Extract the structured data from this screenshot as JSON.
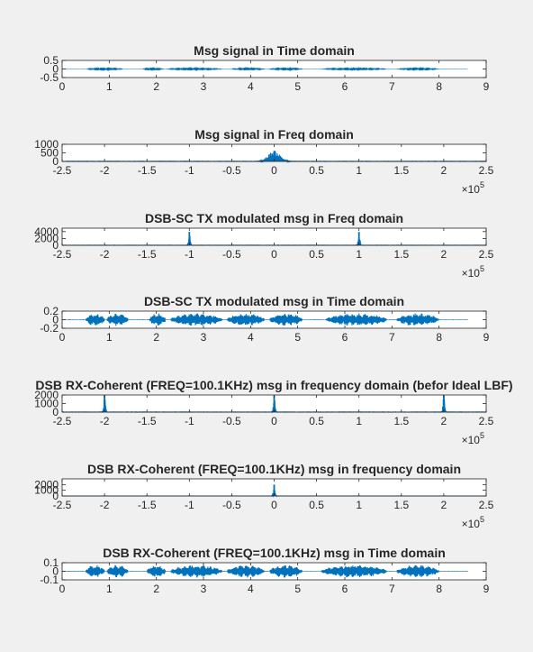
{
  "colors": {
    "background": "#f0f0f0",
    "axes_bg": "#ffffff",
    "axis": "#262626",
    "line": "#0072bd"
  },
  "chart_data": [
    {
      "type": "line",
      "title": "Msg signal in Time domain",
      "xlabel": "",
      "ylabel": "",
      "xlim": [
        0,
        9
      ],
      "ylim": [
        -0.5,
        0.5
      ],
      "xticks": [
        0,
        1,
        2,
        3,
        4,
        5,
        6,
        7,
        8,
        9
      ],
      "xtick_labels": [
        "0",
        "1",
        "2",
        "3",
        "4",
        "5",
        "6",
        "7",
        "8",
        "9"
      ],
      "yticks": [
        -0.5,
        0,
        0.5
      ],
      "ytick_labels": [
        "-0.5",
        "0",
        "0.5"
      ],
      "x_exponent": "",
      "signal": {
        "kind": "envelope",
        "x_start": 0,
        "x_end": 8.6,
        "peak": 0.11,
        "noise": 0.015,
        "bursts": [
          [
            0.5,
            1.3
          ],
          [
            1.7,
            2.15
          ],
          [
            2.2,
            3.4
          ],
          [
            3.6,
            4.3
          ],
          [
            4.4,
            5.1
          ],
          [
            5.5,
            6.9
          ],
          [
            7.1,
            8.0
          ]
        ]
      },
      "grid": false
    },
    {
      "type": "line",
      "title": "Msg signal in Freq domain",
      "xlabel": "",
      "ylabel": "",
      "xlim": [
        -250000,
        250000
      ],
      "ylim": [
        0,
        1000
      ],
      "xticks": [
        -250000,
        -200000,
        -150000,
        -100000,
        -50000,
        0,
        50000,
        100000,
        150000,
        200000,
        250000
      ],
      "xtick_labels": [
        "-2.5",
        "-2",
        "-1.5",
        "-1",
        "-0.5",
        "0",
        "0.5",
        "1",
        "1.5",
        "2",
        "2.5"
      ],
      "yticks": [
        0,
        500,
        1000
      ],
      "ytick_labels": [
        "0",
        "500",
        "1000"
      ],
      "x_exponent": "5",
      "signal": {
        "kind": "spectrum",
        "floor": 12,
        "peaks": [
          {
            "center": 0,
            "height": 620,
            "width": 10000
          }
        ]
      },
      "grid": false
    },
    {
      "type": "line",
      "title": "DSB-SC TX modulated msg in Freq domain",
      "xlabel": "",
      "ylabel": "",
      "xlim": [
        -250000,
        250000
      ],
      "ylim": [
        0,
        5000
      ],
      "xticks": [
        -250000,
        -200000,
        -150000,
        -100000,
        -50000,
        0,
        50000,
        100000,
        150000,
        200000,
        250000
      ],
      "xtick_labels": [
        "-2.5",
        "-2",
        "-1.5",
        "-1",
        "-0.5",
        "0",
        "0.5",
        "1",
        "1.5",
        "2",
        "2.5"
      ],
      "yticks": [
        0,
        2000,
        4000
      ],
      "ytick_labels": [
        "0",
        "2000",
        "4000"
      ],
      "x_exponent": "5",
      "signal": {
        "kind": "spectrum",
        "floor": 30,
        "peaks": [
          {
            "center": -100000,
            "height": 3900,
            "width": 1500
          },
          {
            "center": 100000,
            "height": 3900,
            "width": 1500
          }
        ]
      },
      "grid": false
    },
    {
      "type": "line",
      "title": "DSB-SC TX modulated msg in Time domain",
      "xlabel": "",
      "ylabel": "",
      "xlim": [
        0,
        9
      ],
      "ylim": [
        -0.2,
        0.2
      ],
      "xticks": [
        0,
        1,
        2,
        3,
        4,
        5,
        6,
        7,
        8,
        9
      ],
      "xtick_labels": [
        "0",
        "1",
        "2",
        "3",
        "4",
        "5",
        "6",
        "7",
        "8",
        "9"
      ],
      "yticks": [
        -0.2,
        0,
        0.2
      ],
      "ytick_labels": [
        "-0.2",
        "0",
        "0.2"
      ],
      "x_exponent": "",
      "signal": {
        "kind": "envelope",
        "x_start": 0,
        "x_end": 8.6,
        "peak": 0.15,
        "noise": 0.008,
        "bursts": [
          [
            0.5,
            0.9
          ],
          [
            0.95,
            1.4
          ],
          [
            1.85,
            2.2
          ],
          [
            2.3,
            3.4
          ],
          [
            3.5,
            4.3
          ],
          [
            4.4,
            5.1
          ],
          [
            5.6,
            6.9
          ],
          [
            7.1,
            8.0
          ]
        ]
      },
      "grid": false
    },
    {
      "type": "line",
      "title": "DSB RX-Coherent (FREQ=100.1KHz) msg in frequency domain (befor Ideal LBF)",
      "xlabel": "",
      "ylabel": "",
      "xlim": [
        -250000,
        250000
      ],
      "ylim": [
        0,
        2000
      ],
      "xticks": [
        -250000,
        -200000,
        -150000,
        -100000,
        -50000,
        0,
        50000,
        100000,
        150000,
        200000,
        250000
      ],
      "xtick_labels": [
        "-2.5",
        "-2",
        "-1.5",
        "-1",
        "-0.5",
        "0",
        "0.5",
        "1",
        "1.5",
        "2",
        "2.5"
      ],
      "yticks": [
        0,
        1000,
        2000
      ],
      "ytick_labels": [
        "0",
        "1000",
        "2000"
      ],
      "x_exponent": "5",
      "signal": {
        "kind": "spectrum",
        "floor": 15,
        "peaks": [
          {
            "center": -200000,
            "height": 1950,
            "width": 1500
          },
          {
            "center": 0,
            "height": 1950,
            "width": 1500
          },
          {
            "center": 200000,
            "height": 1950,
            "width": 1500
          }
        ]
      },
      "grid": false
    },
    {
      "type": "line",
      "title": "DSB RX-Coherent  (FREQ=100.1KHz) msg in frequency domain",
      "xlabel": "",
      "ylabel": "",
      "xlim": [
        -250000,
        250000
      ],
      "ylim": [
        0,
        3000
      ],
      "xticks": [
        -250000,
        -200000,
        -150000,
        -100000,
        -50000,
        0,
        50000,
        100000,
        150000,
        200000,
        250000
      ],
      "xtick_labels": [
        "-2.5",
        "-2",
        "-1.5",
        "-1",
        "-0.5",
        "0",
        "0.5",
        "1",
        "1.5",
        "2",
        "2.5"
      ],
      "yticks": [
        0,
        1000,
        2000
      ],
      "ytick_labels": [
        "0",
        "1000",
        "2000"
      ],
      "x_exponent": "5",
      "signal": {
        "kind": "spectrum",
        "floor": 0,
        "peaks": [
          {
            "center": 0,
            "height": 2000,
            "width": 1500
          }
        ]
      },
      "grid": false
    },
    {
      "type": "line",
      "title": "DSB RX-Coherent  (FREQ=100.1KHz) msg in Time domain",
      "xlabel": "",
      "ylabel": "",
      "xlim": [
        0,
        9
      ],
      "ylim": [
        -0.1,
        0.1
      ],
      "xticks": [
        0,
        1,
        2,
        3,
        4,
        5,
        6,
        7,
        8,
        9
      ],
      "xtick_labels": [
        "0",
        "1",
        "2",
        "3",
        "4",
        "5",
        "6",
        "7",
        "8",
        "9"
      ],
      "yticks": [
        -0.1,
        0,
        0.1
      ],
      "ytick_labels": [
        "-0.1",
        "0",
        "0.1"
      ],
      "x_exponent": "",
      "signal": {
        "kind": "envelope",
        "x_start": 0,
        "x_end": 8.6,
        "peak": 0.075,
        "noise": 0.004,
        "bursts": [
          [
            0.5,
            0.9
          ],
          [
            0.95,
            1.4
          ],
          [
            1.8,
            2.2
          ],
          [
            2.3,
            3.4
          ],
          [
            3.5,
            4.3
          ],
          [
            4.4,
            5.1
          ],
          [
            5.5,
            6.9
          ],
          [
            7.1,
            8.0
          ]
        ]
      },
      "grid": false
    }
  ]
}
